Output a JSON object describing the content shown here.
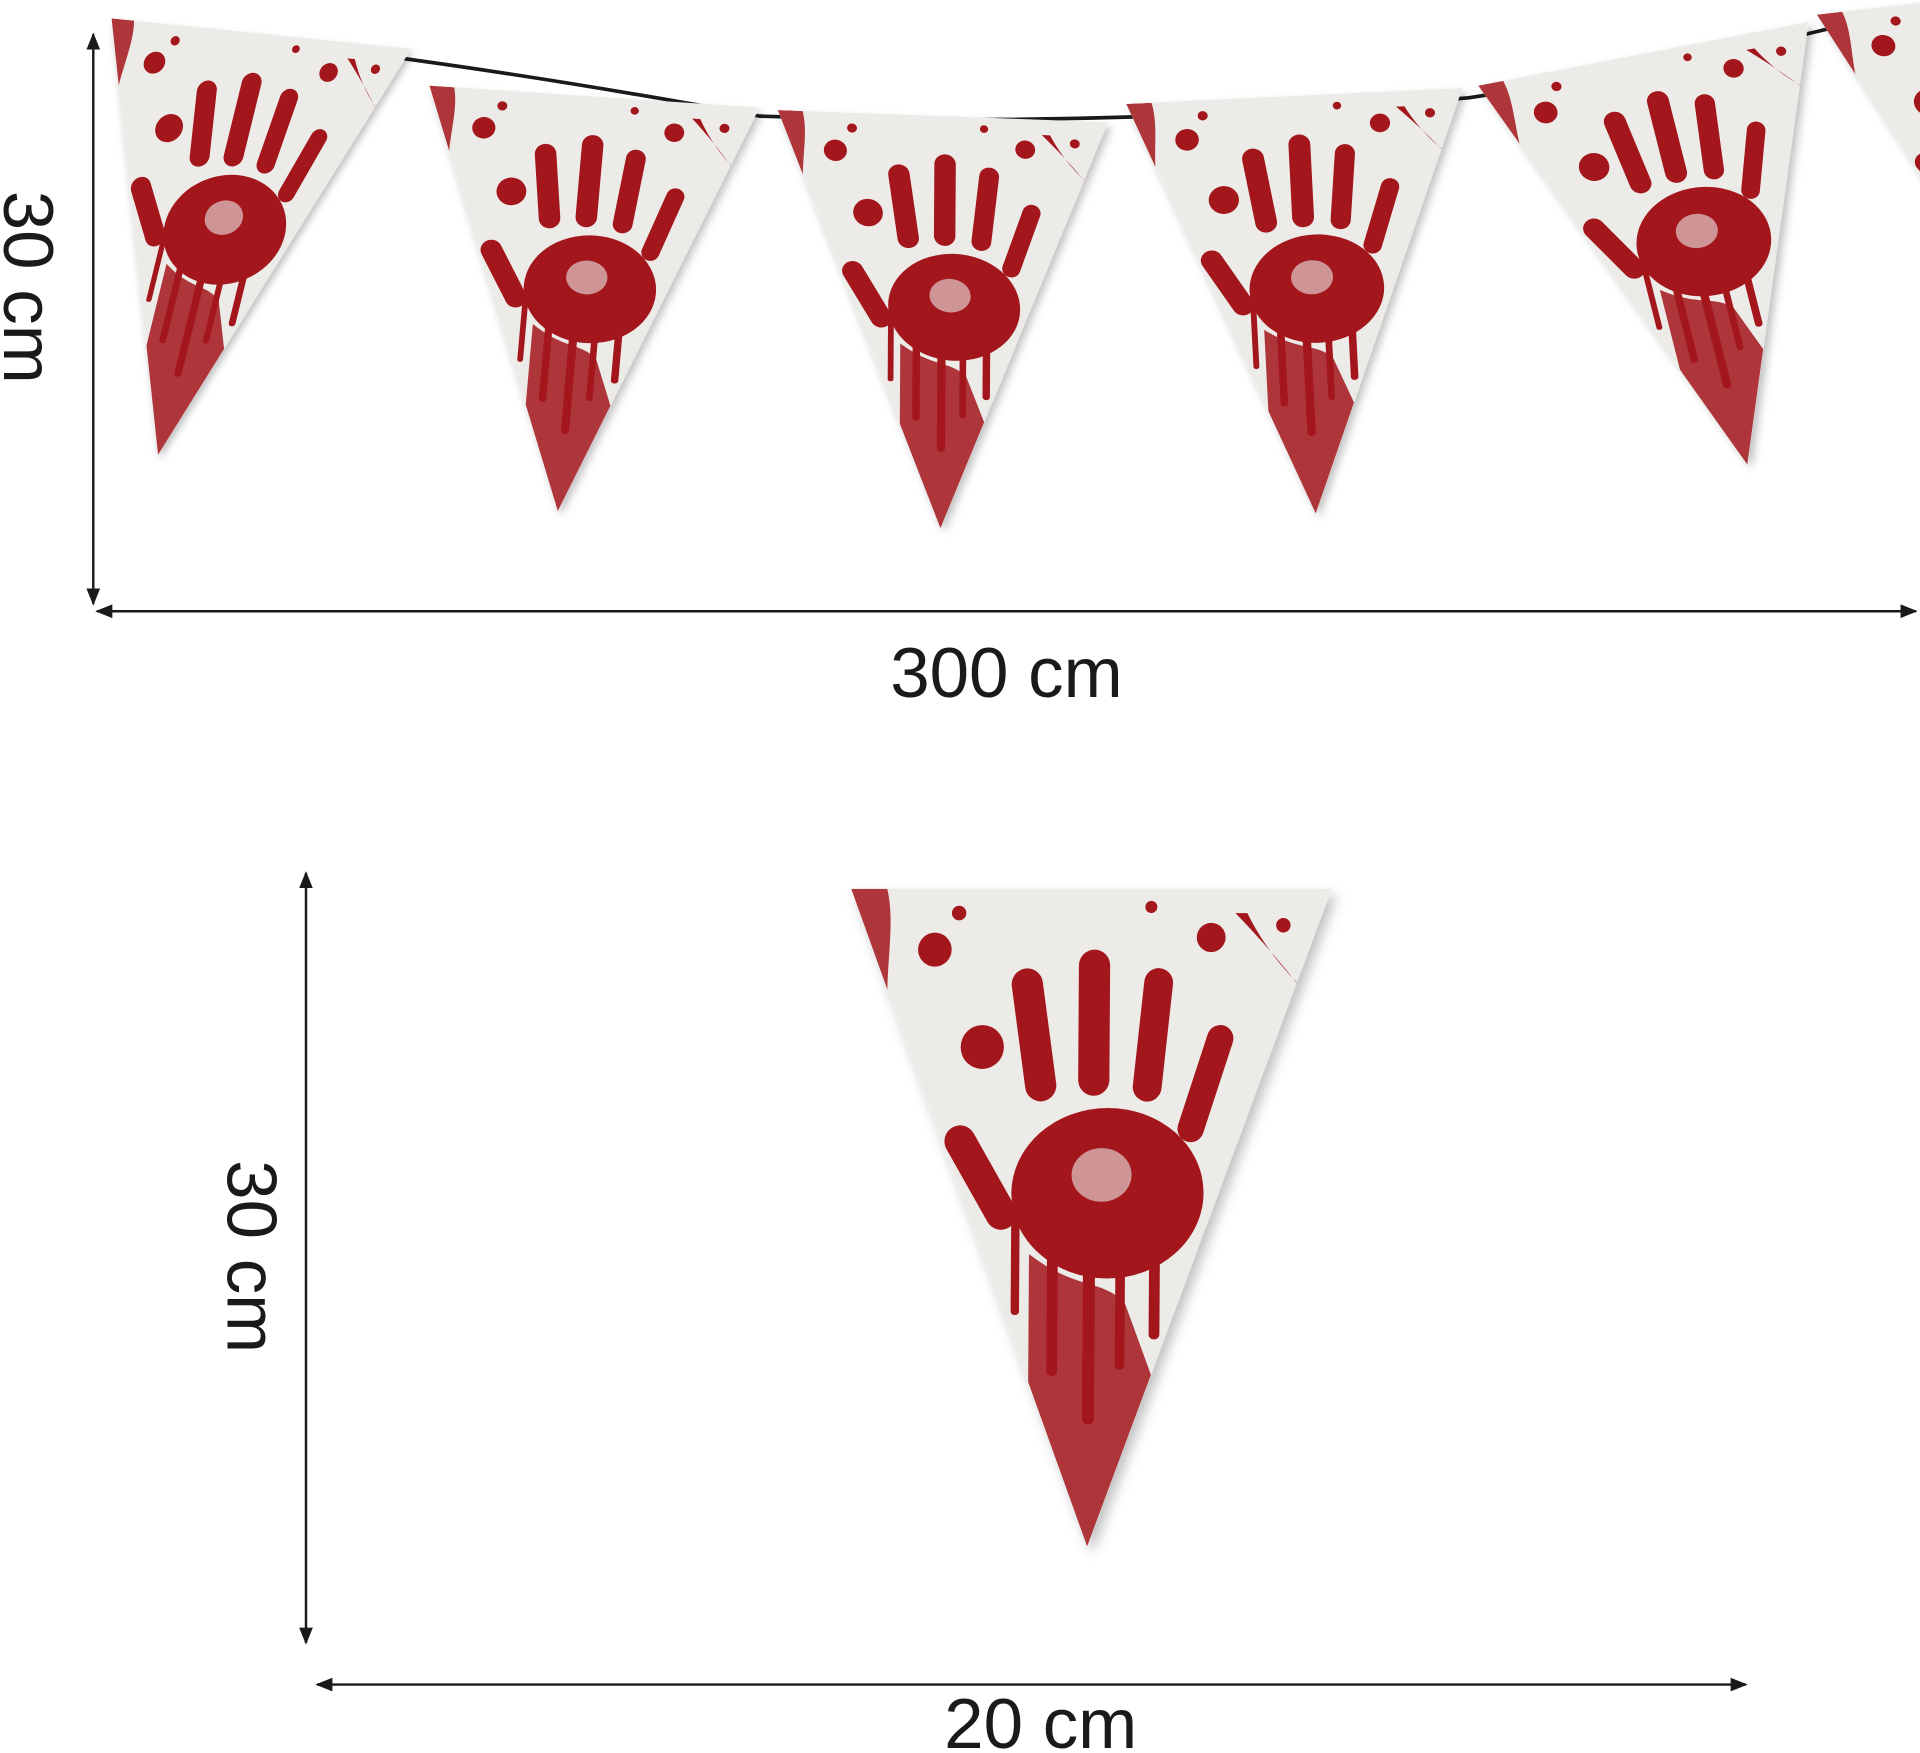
{
  "garland": {
    "height_label": "30 cm",
    "length_label": "300 cm",
    "pennant_count_visible": 6
  },
  "single_pennant": {
    "height_label": "30 cm",
    "width_label": "20 cm"
  },
  "colors": {
    "blood": "#a3161c",
    "paper": "#ecebe8",
    "string": "#1a1a1a",
    "arrow": "#1a1a1a"
  }
}
